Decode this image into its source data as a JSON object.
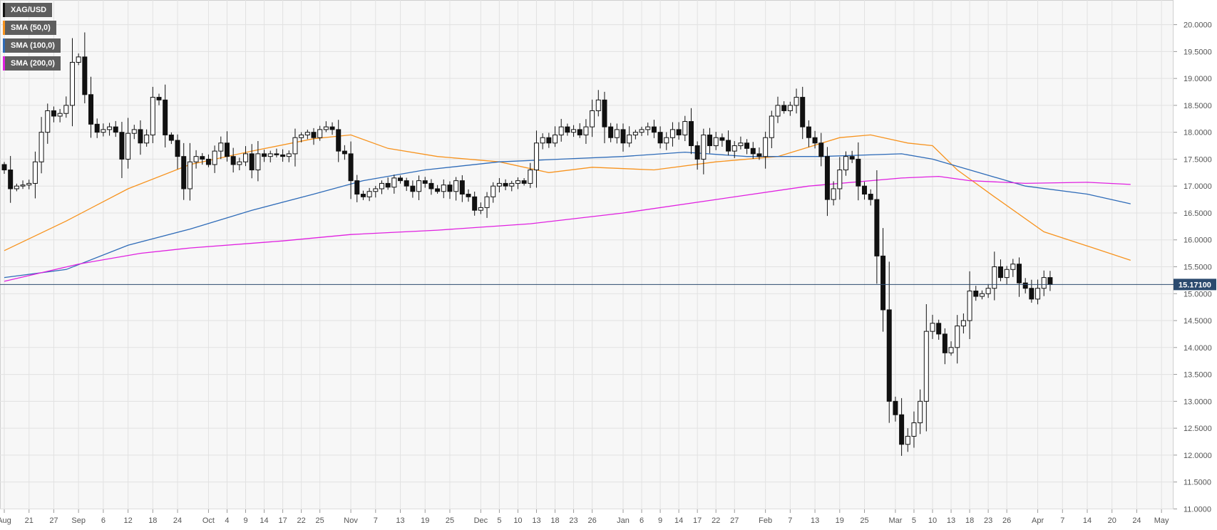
{
  "legend": [
    {
      "label": "XAG/USD",
      "color": "#111111"
    },
    {
      "label": "SMA (50,0)",
      "color": "#f7931e"
    },
    {
      "label": "SMA (100,0)",
      "color": "#2e6bb8"
    },
    {
      "label": "SMA (200,0)",
      "color": "#e020e0"
    }
  ],
  "price_label": "15.17100",
  "chart_data": {
    "type": "candlestick",
    "symbol": "XAG/USD",
    "ylim": [
      10.9,
      20.3
    ],
    "yticks": [
      "11.0000",
      "11.5000",
      "12.0000",
      "12.5000",
      "13.0000",
      "13.5000",
      "14.0000",
      "14.5000",
      "15.0000",
      "15.5000",
      "16.0000",
      "16.5000",
      "17.0000",
      "17.5000",
      "18.0000",
      "18.5000",
      "19.0000",
      "19.5000",
      "20.0000"
    ],
    "xticks": [
      {
        "i": 0,
        "label": "Aug"
      },
      {
        "i": 4,
        "label": "21"
      },
      {
        "i": 8,
        "label": "27"
      },
      {
        "i": 12,
        "label": "Sep"
      },
      {
        "i": 16,
        "label": "6"
      },
      {
        "i": 20,
        "label": "12"
      },
      {
        "i": 24,
        "label": "18"
      },
      {
        "i": 28,
        "label": "24"
      },
      {
        "i": 33,
        "label": "Oct"
      },
      {
        "i": 36,
        "label": "4"
      },
      {
        "i": 39,
        "label": "9"
      },
      {
        "i": 42,
        "label": "14"
      },
      {
        "i": 45,
        "label": "17"
      },
      {
        "i": 48,
        "label": "22"
      },
      {
        "i": 51,
        "label": "25"
      },
      {
        "i": 56,
        "label": "Nov"
      },
      {
        "i": 60,
        "label": "7"
      },
      {
        "i": 64,
        "label": "13"
      },
      {
        "i": 68,
        "label": "19"
      },
      {
        "i": 72,
        "label": "25"
      },
      {
        "i": 77,
        "label": "Dec"
      },
      {
        "i": 80,
        "label": "5"
      },
      {
        "i": 83,
        "label": "10"
      },
      {
        "i": 86,
        "label": "13"
      },
      {
        "i": 89,
        "label": "18"
      },
      {
        "i": 92,
        "label": "23"
      },
      {
        "i": 95,
        "label": "26"
      },
      {
        "i": 100,
        "label": "Jan"
      },
      {
        "i": 103,
        "label": "6"
      },
      {
        "i": 106,
        "label": "9"
      },
      {
        "i": 109,
        "label": "14"
      },
      {
        "i": 112,
        "label": "17"
      },
      {
        "i": 115,
        "label": "22"
      },
      {
        "i": 118,
        "label": "27"
      },
      {
        "i": 123,
        "label": "Feb"
      },
      {
        "i": 127,
        "label": "7"
      },
      {
        "i": 131,
        "label": "13"
      },
      {
        "i": 135,
        "label": "19"
      },
      {
        "i": 139,
        "label": "25"
      },
      {
        "i": 144,
        "label": "Mar"
      },
      {
        "i": 147,
        "label": "5"
      },
      {
        "i": 150,
        "label": "10"
      },
      {
        "i": 153,
        "label": "13"
      },
      {
        "i": 156,
        "label": "18"
      },
      {
        "i": 159,
        "label": "23"
      },
      {
        "i": 162,
        "label": "26"
      },
      {
        "i": 167,
        "label": "Apr"
      },
      {
        "i": 171,
        "label": "7"
      },
      {
        "i": 175,
        "label": "14"
      },
      {
        "i": 179,
        "label": "20"
      },
      {
        "i": 183,
        "label": "24"
      },
      {
        "i": 187,
        "label": "May"
      }
    ],
    "last_price": 15.171,
    "closes": [
      17.3,
      16.95,
      17.0,
      17.02,
      17.05,
      17.45,
      18.0,
      18.4,
      18.3,
      18.35,
      18.5,
      19.3,
      19.4,
      18.7,
      18.15,
      18.0,
      18.05,
      18.1,
      18.0,
      17.5,
      17.98,
      18.05,
      17.8,
      17.95,
      18.65,
      18.6,
      17.95,
      17.85,
      17.55,
      16.95,
      17.45,
      17.55,
      17.5,
      17.4,
      17.65,
      17.8,
      17.55,
      17.4,
      17.45,
      17.6,
      17.3,
      17.6,
      17.55,
      17.6,
      17.58,
      17.55,
      17.6,
      17.9,
      17.95,
      18.0,
      17.9,
      18.05,
      18.1,
      18.05,
      17.65,
      17.6,
      17.1,
      16.85,
      16.8,
      16.9,
      16.95,
      17.05,
      16.98,
      17.15,
      17.1,
      17.0,
      16.9,
      17.1,
      17.05,
      16.95,
      16.9,
      17.02,
      16.9,
      17.1,
      16.85,
      16.8,
      16.55,
      16.6,
      16.8,
      17.0,
      17.05,
      17.0,
      17.05,
      17.1,
      17.05,
      17.3,
      17.8,
      17.9,
      17.8,
      17.95,
      18.1,
      18.0,
      18.05,
      17.95,
      18.1,
      18.4,
      18.6,
      18.1,
      17.9,
      18.05,
      17.8,
      17.95,
      18.0,
      18.05,
      18.1,
      18.0,
      17.8,
      17.9,
      18.05,
      17.95,
      18.2,
      17.75,
      17.5,
      17.95,
      17.75,
      17.9,
      17.85,
      17.65,
      17.75,
      17.8,
      17.7,
      17.6,
      17.55,
      17.9,
      18.3,
      18.5,
      18.4,
      18.5,
      18.65,
      18.1,
      17.9,
      17.8,
      17.55,
      16.75,
      16.95,
      17.3,
      17.55,
      17.5,
      17.0,
      16.85,
      16.75,
      15.7,
      14.7,
      13.0,
      12.75,
      12.2,
      12.35,
      12.6,
      13.0,
      14.3,
      14.45,
      14.25,
      13.9,
      14.0,
      14.4,
      14.5,
      15.05,
      14.95,
      15.0,
      15.1,
      15.5,
      15.3,
      15.45,
      15.55,
      15.2,
      15.1,
      14.9,
      15.1,
      15.3,
      15.17
    ],
    "sma50": [
      [
        0,
        15.8
      ],
      [
        10,
        16.35
      ],
      [
        20,
        16.95
      ],
      [
        30,
        17.4
      ],
      [
        40,
        17.65
      ],
      [
        50,
        17.88
      ],
      [
        56,
        17.95
      ],
      [
        62,
        17.7
      ],
      [
        70,
        17.55
      ],
      [
        80,
        17.45
      ],
      [
        88,
        17.25
      ],
      [
        95,
        17.35
      ],
      [
        105,
        17.3
      ],
      [
        115,
        17.45
      ],
      [
        125,
        17.55
      ],
      [
        135,
        17.9
      ],
      [
        140,
        17.95
      ],
      [
        146,
        17.8
      ],
      [
        150,
        17.75
      ],
      [
        154,
        17.3
      ],
      [
        160,
        16.8
      ],
      [
        168,
        16.15
      ],
      [
        176,
        15.85
      ],
      [
        182,
        15.62
      ]
    ],
    "sma100": [
      [
        0,
        15.3
      ],
      [
        10,
        15.45
      ],
      [
        20,
        15.9
      ],
      [
        30,
        16.2
      ],
      [
        40,
        16.55
      ],
      [
        50,
        16.85
      ],
      [
        58,
        17.1
      ],
      [
        68,
        17.3
      ],
      [
        80,
        17.45
      ],
      [
        90,
        17.5
      ],
      [
        100,
        17.55
      ],
      [
        110,
        17.63
      ],
      [
        120,
        17.55
      ],
      [
        132,
        17.55
      ],
      [
        145,
        17.6
      ],
      [
        150,
        17.5
      ],
      [
        156,
        17.3
      ],
      [
        165,
        17.0
      ],
      [
        175,
        16.85
      ],
      [
        182,
        16.67
      ]
    ],
    "sma200": [
      [
        0,
        15.23
      ],
      [
        12,
        15.55
      ],
      [
        22,
        15.75
      ],
      [
        30,
        15.85
      ],
      [
        45,
        15.98
      ],
      [
        56,
        16.1
      ],
      [
        70,
        16.18
      ],
      [
        85,
        16.3
      ],
      [
        100,
        16.5
      ],
      [
        115,
        16.75
      ],
      [
        130,
        17.0
      ],
      [
        145,
        17.15
      ],
      [
        151,
        17.18
      ],
      [
        156,
        17.1
      ],
      [
        165,
        17.05
      ],
      [
        175,
        17.07
      ],
      [
        182,
        17.03
      ]
    ]
  }
}
